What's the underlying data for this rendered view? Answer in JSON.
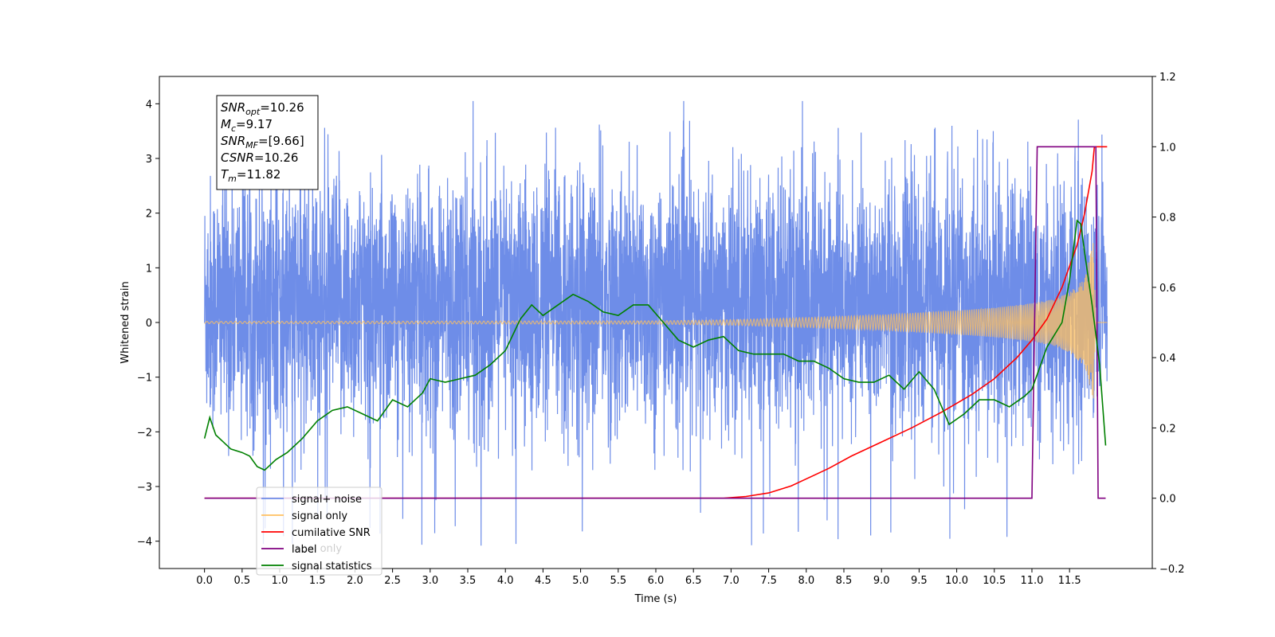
{
  "chart_data": {
    "type": "line",
    "title": "",
    "xlabel": "Time (s)",
    "ylabel": "Whitened strain",
    "y2label": "",
    "xlim": [
      -0.6,
      12.6
    ],
    "ylim": [
      -4.5,
      4.5
    ],
    "y2lim": [
      -0.2,
      1.2
    ],
    "xticks": [
      "0.0",
      "0.5",
      "1.0",
      "1.5",
      "2.0",
      "2.5",
      "3.0",
      "3.5",
      "4.0",
      "4.5",
      "5.0",
      "5.5",
      "6.0",
      "6.5",
      "7.0",
      "7.5",
      "8.0",
      "8.5",
      "9.0",
      "9.5",
      "10.0",
      "10.5",
      "11.0",
      "11.5"
    ],
    "yticks": [
      "−4",
      "−3",
      "−2",
      "−1",
      "0",
      "1",
      "2",
      "3",
      "4"
    ],
    "y2ticks": [
      "−0.2",
      "0.0",
      "0.2",
      "0.4",
      "0.6",
      "0.8",
      "1.0",
      "1.2"
    ],
    "grid": false,
    "legend": {
      "position": "lower-left",
      "entries": [
        {
          "label": "signal+ noise",
          "color": "#6e8de8"
        },
        {
          "label": "signal only",
          "color": "#ffc060"
        },
        {
          "label": "cumilative SNR",
          "color": "#ff0000"
        },
        {
          "label": "label",
          "color": "#800080"
        },
        {
          "label": "signal statistics",
          "color": "#008000"
        }
      ],
      "hidden_entry": "label only"
    },
    "annotation": {
      "lines": [
        {
          "main": "SNR",
          "sub": "opt",
          "value": "=10.26"
        },
        {
          "main": "M",
          "sub": "c",
          "value": "=9.17"
        },
        {
          "main": "SNR",
          "sub": "MF",
          "value": "=[9.66]"
        },
        {
          "main": "CSNR",
          "sub": "",
          "value": "=10.26"
        },
        {
          "main": "T",
          "sub": "m",
          "value": "=11.82"
        }
      ]
    },
    "series": [
      {
        "name": "signal+ noise",
        "axis": "left",
        "color": "#6e8de8",
        "kind": "noise",
        "x_range": [
          0.0,
          12.0
        ],
        "typical_range": [
          -3.2,
          4.0
        ]
      },
      {
        "name": "signal only",
        "axis": "left",
        "color": "#ffc060",
        "kind": "chirp",
        "x_range": [
          0.0,
          12.0
        ],
        "envelope": {
          "x": [
            0,
            6,
            7,
            8,
            9,
            10,
            10.5,
            11,
            11.3,
            11.5,
            11.7,
            11.82,
            11.85,
            12.0
          ],
          "y": [
            0.02,
            0.03,
            0.05,
            0.09,
            0.14,
            0.22,
            0.27,
            0.35,
            0.43,
            0.55,
            0.8,
            1.5,
            0.0,
            0.0
          ]
        }
      },
      {
        "name": "cumilative SNR",
        "axis": "right",
        "color": "#ff0000",
        "x": [
          0.0,
          6.9,
          7.2,
          7.5,
          7.8,
          8.0,
          8.3,
          8.6,
          9.0,
          9.4,
          9.8,
          10.2,
          10.5,
          10.8,
          11.0,
          11.2,
          11.4,
          11.6,
          11.7,
          11.8,
          11.83,
          11.9,
          12.0
        ],
        "y": [
          0.0,
          0.0,
          0.005,
          0.015,
          0.035,
          0.055,
          0.085,
          0.12,
          0.16,
          0.2,
          0.245,
          0.295,
          0.34,
          0.4,
          0.45,
          0.51,
          0.6,
          0.72,
          0.81,
          0.93,
          1.0,
          1.0,
          1.0
        ]
      },
      {
        "name": "label",
        "axis": "right",
        "color": "#800080",
        "x": [
          0.0,
          11.0,
          11.07,
          11.85,
          11.88,
          11.98
        ],
        "y": [
          0.0,
          0.0,
          1.0,
          1.0,
          0.0,
          0.0
        ]
      },
      {
        "name": "signal statistics",
        "axis": "right",
        "color": "#008000",
        "x": [
          0.0,
          0.07,
          0.15,
          0.25,
          0.35,
          0.5,
          0.6,
          0.7,
          0.8,
          0.95,
          1.1,
          1.3,
          1.5,
          1.7,
          1.9,
          2.1,
          2.3,
          2.5,
          2.7,
          2.9,
          3.0,
          3.2,
          3.4,
          3.6,
          3.8,
          4.0,
          4.2,
          4.35,
          4.5,
          4.7,
          4.9,
          5.1,
          5.3,
          5.5,
          5.7,
          5.9,
          6.1,
          6.3,
          6.5,
          6.7,
          6.9,
          7.1,
          7.3,
          7.5,
          7.7,
          7.9,
          8.1,
          8.3,
          8.5,
          8.7,
          8.9,
          9.1,
          9.3,
          9.5,
          9.7,
          9.9,
          10.1,
          10.3,
          10.5,
          10.7,
          10.9,
          11.0,
          11.2,
          11.4,
          11.5,
          11.6,
          11.65,
          11.7,
          11.8,
          11.9,
          11.98
        ],
        "y": [
          0.17,
          0.23,
          0.18,
          0.16,
          0.14,
          0.13,
          0.12,
          0.09,
          0.08,
          0.11,
          0.13,
          0.17,
          0.22,
          0.25,
          0.26,
          0.24,
          0.22,
          0.28,
          0.26,
          0.3,
          0.34,
          0.33,
          0.34,
          0.35,
          0.38,
          0.42,
          0.51,
          0.55,
          0.52,
          0.55,
          0.58,
          0.56,
          0.53,
          0.52,
          0.55,
          0.55,
          0.5,
          0.45,
          0.43,
          0.45,
          0.46,
          0.42,
          0.41,
          0.41,
          0.41,
          0.39,
          0.39,
          0.37,
          0.34,
          0.33,
          0.33,
          0.35,
          0.31,
          0.36,
          0.31,
          0.21,
          0.24,
          0.28,
          0.28,
          0.26,
          0.29,
          0.31,
          0.43,
          0.5,
          0.62,
          0.79,
          0.78,
          0.7,
          0.55,
          0.38,
          0.15
        ]
      }
    ]
  }
}
